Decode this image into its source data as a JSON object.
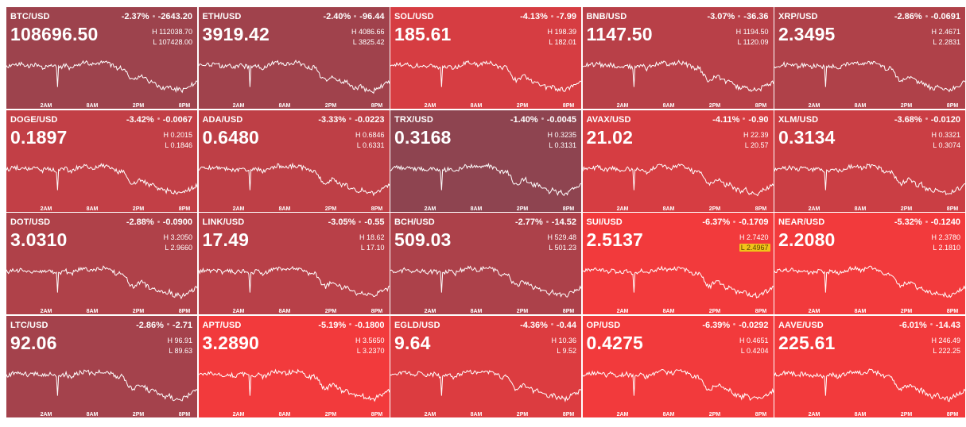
{
  "axis_labels": [
    "2AM",
    "8AM",
    "2PM",
    "8PM"
  ],
  "colors": {
    "strong_red": "#f23a3c",
    "muted_red": "#8e4450"
  },
  "tickers": [
    {
      "symbol": "BTC/USD",
      "pct": "-2.37%",
      "change": "-2643.20",
      "price": "108696.50",
      "high": "H 112038.70",
      "low": "L 107428.00",
      "intensity": 0.15
    },
    {
      "symbol": "ETH/USD",
      "pct": "-2.40%",
      "change": "-96.44",
      "price": "3919.42",
      "high": "H 4086.66",
      "low": "L 3825.42",
      "intensity": 0.18
    },
    {
      "symbol": "SOL/USD",
      "pct": "-4.13%",
      "change": "-7.99",
      "price": "185.61",
      "high": "H 198.39",
      "low": "L 182.01",
      "intensity": 0.72
    },
    {
      "symbol": "BNB/USD",
      "pct": "-3.07%",
      "change": "-36.36",
      "price": "1147.50",
      "high": "H 1194.50",
      "low": "L 1120.09",
      "intensity": 0.42
    },
    {
      "symbol": "XRP/USD",
      "pct": "-2.86%",
      "change": "-0.0691",
      "price": "2.3495",
      "high": "H 2.4671",
      "low": "L 2.2831",
      "intensity": 0.33
    },
    {
      "symbol": "DOGE/USD",
      "pct": "-3.42%",
      "change": "-0.0067",
      "price": "0.1897",
      "high": "H 0.2015",
      "low": "L 0.1846",
      "intensity": 0.52
    },
    {
      "symbol": "ADA/USD",
      "pct": "-3.33%",
      "change": "-0.0223",
      "price": "0.6480",
      "high": "H 0.6846",
      "low": "L 0.6331",
      "intensity": 0.48
    },
    {
      "symbol": "TRX/USD",
      "pct": "-1.40%",
      "change": "-0.0045",
      "price": "0.3168",
      "high": "H 0.3235",
      "low": "L 0.3131",
      "intensity": 0.0
    },
    {
      "symbol": "AVAX/USD",
      "pct": "-4.11%",
      "change": "-0.90",
      "price": "21.02",
      "high": "H 22.39",
      "low": "L 20.57",
      "intensity": 0.72
    },
    {
      "symbol": "XLM/USD",
      "pct": "-3.68%",
      "change": "-0.0120",
      "price": "0.3134",
      "high": "H 0.3321",
      "low": "L 0.3074",
      "intensity": 0.6
    },
    {
      "symbol": "DOT/USD",
      "pct": "-2.88%",
      "change": "-0.0900",
      "price": "3.0310",
      "high": "H 3.2050",
      "low": "L 2.9660",
      "intensity": 0.33
    },
    {
      "symbol": "LINK/USD",
      "pct": "-3.05%",
      "change": "-0.55",
      "price": "17.49",
      "high": "H 18.62",
      "low": "L 17.10",
      "intensity": 0.42
    },
    {
      "symbol": "BCH/USD",
      "pct": "-2.77%",
      "change": "-14.52",
      "price": "509.03",
      "high": "H 529.48",
      "low": "L 501.23",
      "intensity": 0.3
    },
    {
      "symbol": "SUI/USD",
      "pct": "-6.37%",
      "change": "-0.1709",
      "price": "2.5137",
      "high": "H 2.7420",
      "low": "L 2.4967",
      "intensity": 1.0,
      "low_hit": true
    },
    {
      "symbol": "NEAR/USD",
      "pct": "-5.32%",
      "change": "-0.1240",
      "price": "2.2080",
      "high": "H 2.3780",
      "low": "L 2.1810",
      "intensity": 1.0
    },
    {
      "symbol": "LTC/USD",
      "pct": "-2.86%",
      "change": "-2.71",
      "price": "92.06",
      "high": "H 96.91",
      "low": "L 89.63",
      "intensity": 0.22
    },
    {
      "symbol": "APT/USD",
      "pct": "-5.19%",
      "change": "-0.1800",
      "price": "3.2890",
      "high": "H 3.5650",
      "low": "L 3.2370",
      "intensity": 1.0
    },
    {
      "symbol": "EGLD/USD",
      "pct": "-4.36%",
      "change": "-0.44",
      "price": "9.64",
      "high": "H 10.36",
      "low": "L 9.52",
      "intensity": 0.78
    },
    {
      "symbol": "OP/USD",
      "pct": "-6.39%",
      "change": "-0.0292",
      "price": "0.4275",
      "high": "H 0.4651",
      "low": "L 0.4204",
      "intensity": 1.0
    },
    {
      "symbol": "AAVE/USD",
      "pct": "-6.01%",
      "change": "-14.43",
      "price": "225.61",
      "high": "H 246.49",
      "low": "L 222.25",
      "intensity": 1.0
    }
  ]
}
